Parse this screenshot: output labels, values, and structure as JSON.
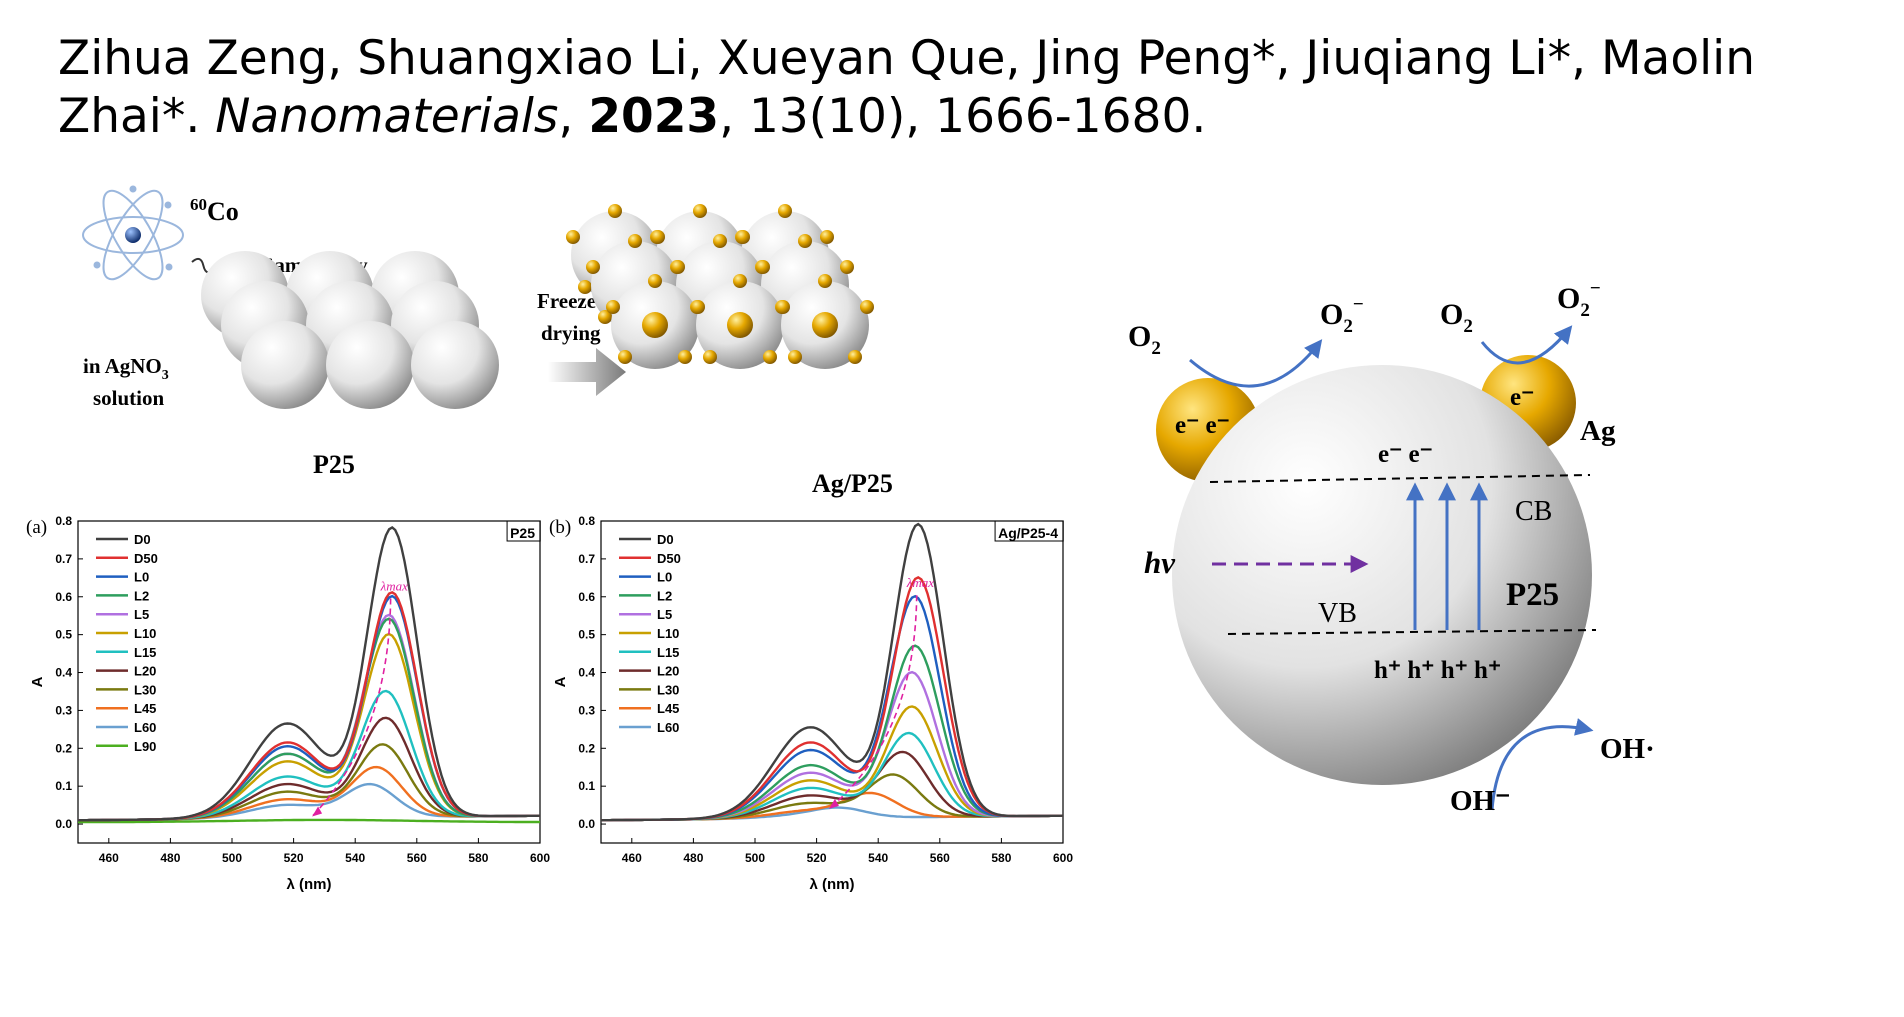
{
  "citation": {
    "authors": "Zihua Zeng, Shuangxiao Li, Xueyan Que, Jing Peng*, Jiuqiang Li*, Maolin Zhai*.",
    "journal": "Nanomaterials",
    "year": "2023",
    "rest": ", 13(10), 1666-1680."
  },
  "synthesis": {
    "isotope_mass": "60",
    "isotope_symbol": "Co",
    "gamma_label": "Gamma-ray",
    "solution_line1_prefix": "in AgNO",
    "solution_line1_sub": "3",
    "solution_line2": "solution",
    "p25_label": "P25",
    "freeze_line1": "Freeze-",
    "freeze_line2": "drying",
    "product_label": "Ag/P25"
  },
  "mechanism": {
    "o2": "O",
    "o2_sub": "2",
    "o2_minus": "O",
    "o2_minus_sub": "2",
    "o2_minus_sup": "−",
    "electrons_left_ag": "e⁻ e⁻",
    "electron_right_ag": "e⁻",
    "ag_label": "Ag",
    "electrons_cb": "e⁻  e⁻",
    "cb": "CB",
    "vb": "VB",
    "particle": "P25",
    "holes": "h⁺ h⁺ h⁺ h⁺",
    "hv": "hv",
    "oh_radical": "OH·",
    "oh_minus": "OH⁻",
    "colors": {
      "arrow": "#4472c4",
      "light": "#7030a0",
      "gold": "#e6a800"
    }
  },
  "chart_data": [
    {
      "type": "line",
      "panel_label": "(a)",
      "title": "P25",
      "xlabel": "λ (nm)",
      "ylabel": "A",
      "xlim": [
        450,
        600
      ],
      "ylim": [
        -0.05,
        0.8
      ],
      "xticks": [
        460,
        480,
        500,
        520,
        540,
        560,
        580,
        600
      ],
      "yticks": [
        0.0,
        0.1,
        0.2,
        0.3,
        0.4,
        0.5,
        0.6,
        0.7,
        0.8
      ],
      "annotation": "λmax",
      "legend_position": "top-left",
      "series": [
        {
          "name": "D0",
          "color": "#404040",
          "peak": 0.76,
          "peak_x": 552,
          "shoulder": 0.25
        },
        {
          "name": "D50",
          "color": "#e03030",
          "peak": 0.59,
          "peak_x": 552,
          "shoulder": 0.2
        },
        {
          "name": "L0",
          "color": "#1f5fc0",
          "peak": 0.58,
          "peak_x": 552,
          "shoulder": 0.19
        },
        {
          "name": "L2",
          "color": "#2e9e5e",
          "peak": 0.52,
          "peak_x": 551,
          "shoulder": 0.17
        },
        {
          "name": "L5",
          "color": "#b070e0",
          "peak": 0.53,
          "peak_x": 551,
          "shoulder": 0.17
        },
        {
          "name": "L10",
          "color": "#c8a000",
          "peak": 0.48,
          "peak_x": 551,
          "shoulder": 0.15
        },
        {
          "name": "L15",
          "color": "#20c0c0",
          "peak": 0.33,
          "peak_x": 550,
          "shoulder": 0.11
        },
        {
          "name": "L20",
          "color": "#6e2c2c",
          "peak": 0.26,
          "peak_x": 550,
          "shoulder": 0.09
        },
        {
          "name": "L30",
          "color": "#7a7a10",
          "peak": 0.19,
          "peak_x": 549,
          "shoulder": 0.07
        },
        {
          "name": "L45",
          "color": "#f07020",
          "peak": 0.13,
          "peak_x": 547,
          "shoulder": 0.05
        },
        {
          "name": "L60",
          "color": "#6aa0d0",
          "peak": 0.085,
          "peak_x": 545,
          "shoulder": 0.035
        },
        {
          "name": "L90",
          "color": "#4caf20",
          "peak": 0.0,
          "peak_x": 530,
          "shoulder": 0.0
        }
      ]
    },
    {
      "type": "line",
      "panel_label": "(b)",
      "title": "Ag/P25-4",
      "xlabel": "λ (nm)",
      "ylabel": "A",
      "xlim": [
        450,
        600
      ],
      "ylim": [
        -0.05,
        0.8
      ],
      "xticks": [
        460,
        480,
        500,
        520,
        540,
        560,
        580,
        600
      ],
      "yticks": [
        0.0,
        0.1,
        0.2,
        0.3,
        0.4,
        0.5,
        0.6,
        0.7,
        0.8
      ],
      "annotation": "λmax",
      "legend_position": "top-left",
      "series": [
        {
          "name": "D0",
          "color": "#404040",
          "peak": 0.77,
          "peak_x": 553,
          "shoulder": 0.24
        },
        {
          "name": "D50",
          "color": "#e03030",
          "peak": 0.63,
          "peak_x": 553,
          "shoulder": 0.2
        },
        {
          "name": "L0",
          "color": "#1f5fc0",
          "peak": 0.58,
          "peak_x": 552,
          "shoulder": 0.18
        },
        {
          "name": "L2",
          "color": "#2e9e5e",
          "peak": 0.45,
          "peak_x": 552,
          "shoulder": 0.14
        },
        {
          "name": "L5",
          "color": "#b070e0",
          "peak": 0.38,
          "peak_x": 551,
          "shoulder": 0.12
        },
        {
          "name": "L10",
          "color": "#c8a000",
          "peak": 0.29,
          "peak_x": 551,
          "shoulder": 0.1
        },
        {
          "name": "L15",
          "color": "#20c0c0",
          "peak": 0.22,
          "peak_x": 550,
          "shoulder": 0.08
        },
        {
          "name": "L20",
          "color": "#6e2c2c",
          "peak": 0.17,
          "peak_x": 548,
          "shoulder": 0.06
        },
        {
          "name": "L30",
          "color": "#7a7a10",
          "peak": 0.11,
          "peak_x": 545,
          "shoulder": 0.04
        },
        {
          "name": "L45",
          "color": "#f07020",
          "peak": 0.06,
          "peak_x": 538,
          "shoulder": 0.02
        },
        {
          "name": "L60",
          "color": "#6aa0d0",
          "peak": 0.02,
          "peak_x": 528,
          "shoulder": 0.01
        }
      ]
    }
  ]
}
